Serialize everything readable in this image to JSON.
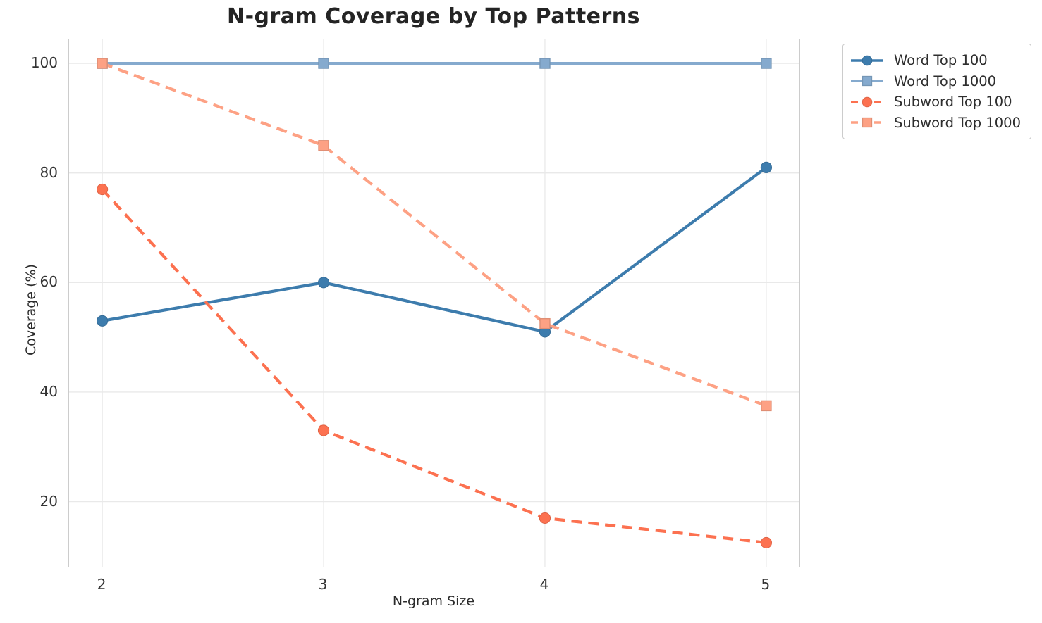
{
  "chart_data": {
    "type": "line",
    "title": "N-gram Coverage by Top Patterns",
    "xlabel": "N-gram Size",
    "ylabel": "Coverage (%)",
    "x": [
      2,
      3,
      4,
      5
    ],
    "xticks": [
      2,
      3,
      4,
      5
    ],
    "yticks": [
      20,
      40,
      60,
      80,
      100
    ],
    "xlim": [
      1.85,
      5.15
    ],
    "ylim": [
      8.125,
      104.375
    ],
    "grid": true,
    "legend_position": "outside-upper-right",
    "series": [
      {
        "name": "Word Top 100",
        "values": [
          53,
          60,
          51,
          81
        ],
        "color": "#3d7cad",
        "style": "solid",
        "marker": "circle"
      },
      {
        "name": "Word Top 1000",
        "values": [
          100,
          100,
          100,
          100
        ],
        "color": "#85aace",
        "style": "solid",
        "marker": "square"
      },
      {
        "name": "Subword Top 100",
        "values": [
          77,
          33,
          17,
          12.5
        ],
        "color": "#fc7150",
        "style": "dashed",
        "marker": "circle"
      },
      {
        "name": "Subword Top 1000",
        "values": [
          100,
          85,
          52.5,
          37.5
        ],
        "color": "#fda184",
        "style": "dashed",
        "marker": "square"
      }
    ],
    "colors": {
      "grid": "#e9e9e9",
      "spine": "#cccccc",
      "title_text": "#242424",
      "tick_text": "#333333"
    }
  }
}
